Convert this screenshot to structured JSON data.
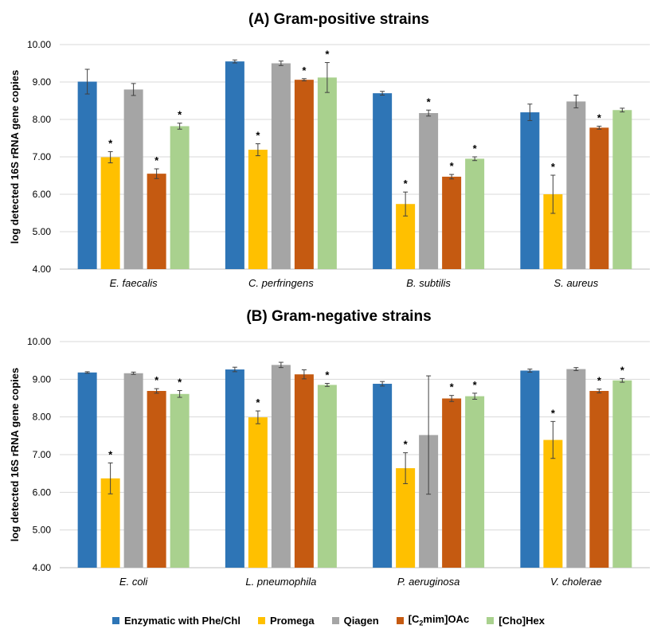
{
  "chart_data": [
    {
      "type": "bar",
      "title": "(A) Gram-positive strains",
      "ylabel": "log detected 16S rRNA gene copies",
      "ylim": [
        4.0,
        10.0
      ],
      "yticks": [
        "4.00",
        "5.00",
        "6.00",
        "7.00",
        "8.00",
        "9.00",
        "10.00"
      ],
      "grid": true,
      "categories": [
        "E. faecalis",
        "C. perfringens",
        "B. subtilis",
        "S. aureus"
      ],
      "series": [
        {
          "name": "Enzymatic with Phe/Chl",
          "color": "#2e75b6",
          "values": [
            9.01,
            9.55,
            8.7,
            8.19
          ],
          "errors": [
            0.33,
            0.04,
            0.05,
            0.22
          ],
          "significant": [
            false,
            false,
            false,
            false
          ]
        },
        {
          "name": "Promega",
          "color": "#ffc000",
          "values": [
            6.99,
            7.19,
            5.74,
            6.0
          ],
          "errors": [
            0.15,
            0.16,
            0.32,
            0.51
          ],
          "significant": [
            true,
            true,
            true,
            true
          ]
        },
        {
          "name": "Qiagen",
          "color": "#a5a5a5",
          "values": [
            8.8,
            9.5,
            8.17,
            8.48
          ],
          "errors": [
            0.16,
            0.06,
            0.08,
            0.17
          ],
          "significant": [
            false,
            false,
            true,
            false
          ]
        },
        {
          "name": "[C2mim]OAc",
          "color": "#c55a11",
          "values": [
            6.55,
            9.06,
            6.47,
            7.78
          ],
          "errors": [
            0.13,
            0.03,
            0.06,
            0.04
          ],
          "significant": [
            true,
            true,
            true,
            true
          ]
        },
        {
          "name": "[Cho]Hex",
          "color": "#a9d18e",
          "values": [
            7.82,
            9.12,
            6.95,
            8.25
          ],
          "errors": [
            0.08,
            0.4,
            0.05,
            0.05
          ],
          "significant": [
            true,
            true,
            true,
            false
          ]
        }
      ]
    },
    {
      "type": "bar",
      "title": "(B) Gram-negative strains",
      "ylabel": "log detected 16S rRNA gene copies",
      "ylim": [
        4.0,
        10.0
      ],
      "yticks": [
        "4.00",
        "5.00",
        "6.00",
        "7.00",
        "8.00",
        "9.00",
        "10.00"
      ],
      "grid": true,
      "categories": [
        "E. coli",
        "L. pneumophila",
        "P. aeruginosa",
        "V. cholerae"
      ],
      "series": [
        {
          "name": "Enzymatic with Phe/Chl",
          "color": "#2e75b6",
          "values": [
            9.18,
            9.26,
            8.88,
            9.23
          ],
          "errors": [
            0.02,
            0.06,
            0.06,
            0.04
          ],
          "significant": [
            false,
            false,
            false,
            false
          ]
        },
        {
          "name": "Promega",
          "color": "#ffc000",
          "values": [
            6.37,
            7.99,
            6.64,
            7.39
          ],
          "errors": [
            0.41,
            0.17,
            0.41,
            0.49
          ],
          "significant": [
            true,
            true,
            true,
            true
          ]
        },
        {
          "name": "Qiagen",
          "color": "#a5a5a5",
          "values": [
            9.16,
            9.38,
            7.52,
            9.27
          ],
          "errors": [
            0.03,
            0.07,
            1.57,
            0.04
          ],
          "significant": [
            false,
            false,
            false,
            false
          ]
        },
        {
          "name": "[C2mim]OAc",
          "color": "#c55a11",
          "values": [
            8.69,
            9.13,
            8.49,
            8.69
          ],
          "errors": [
            0.06,
            0.12,
            0.08,
            0.05
          ],
          "significant": [
            true,
            false,
            true,
            true
          ]
        },
        {
          "name": "[Cho]Hex",
          "color": "#a9d18e",
          "values": [
            8.61,
            8.85,
            8.55,
            8.97
          ],
          "errors": [
            0.09,
            0.04,
            0.08,
            0.05
          ],
          "significant": [
            true,
            true,
            true,
            true
          ]
        }
      ]
    }
  ],
  "legend": {
    "placement": "bottom",
    "items": [
      {
        "label": "Enzymatic with Phe/Chl",
        "color": "#2e75b6"
      },
      {
        "label": "Promega",
        "color": "#ffc000"
      },
      {
        "label": "Qiagen",
        "color": "#a5a5a5"
      },
      {
        "label_prefix": "[C",
        "label_sub": "2",
        "label_suffix": "mim]OAc",
        "color": "#c55a11"
      },
      {
        "label": "[Cho]Hex",
        "color": "#a9d18e"
      }
    ]
  },
  "significance_marker": "*"
}
